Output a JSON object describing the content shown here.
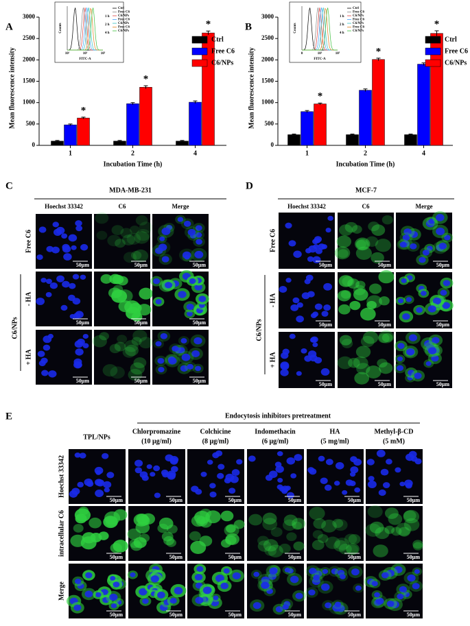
{
  "chart_data": [
    {
      "type": "bar",
      "panel": "A",
      "categories": [
        "1",
        "2",
        "4"
      ],
      "x_label": "Incubation Time (h)",
      "y_label": "Mean fluorescence intensity",
      "ylim": [
        0,
        3000
      ],
      "yticks": [
        0,
        500,
        1000,
        1500,
        2000,
        2500,
        3000
      ],
      "series": [
        {
          "name": "Ctrl",
          "color": "#000000",
          "values": [
            100,
            100,
            100
          ],
          "errors": [
            15,
            15,
            15
          ]
        },
        {
          "name": "Free C6",
          "color": "#0000ff",
          "values": [
            480,
            975,
            1010
          ],
          "errors": [
            20,
            25,
            30
          ]
        },
        {
          "name": "C6/NPs",
          "color": "#ff0000",
          "values": [
            640,
            1360,
            2630
          ],
          "errors": [
            20,
            35,
            45
          ],
          "annotations": [
            "*",
            "*",
            "*"
          ]
        }
      ],
      "inset": {
        "y_label": "Counts",
        "x_label": "FITC-A",
        "xtick_labels": [
          "10¹",
          "10³",
          "10⁵"
        ],
        "time_labels": [
          "1 h",
          "2 h",
          "4 h"
        ],
        "legend": [
          "Ctrl",
          "Free C6",
          "C6/NPs",
          "Free C6",
          "C6/NPs",
          "Free C6",
          "C6/NPs"
        ]
      }
    },
    {
      "type": "bar",
      "panel": "B",
      "categories": [
        "1",
        "2",
        "4"
      ],
      "x_label": "Incubation Time (h)",
      "y_label": "Mean fluorescence intensity",
      "ylim": [
        0,
        3000
      ],
      "yticks": [
        0,
        500,
        1000,
        1500,
        2000,
        2500,
        3000
      ],
      "series": [
        {
          "name": "Ctrl",
          "color": "#000000",
          "values": [
            250,
            250,
            250
          ],
          "errors": [
            15,
            15,
            15
          ]
        },
        {
          "name": "Free C6",
          "color": "#0000ff",
          "values": [
            790,
            1290,
            1900
          ],
          "errors": [
            25,
            30,
            30
          ]
        },
        {
          "name": "C6/NPs",
          "color": "#ff0000",
          "values": [
            970,
            2010,
            2620
          ],
          "errors": [
            20,
            30,
            60
          ],
          "annotations": [
            "*",
            "*",
            "*"
          ]
        }
      ],
      "inset": {
        "y_label": "Counts",
        "x_label": "FITC-A",
        "xtick_labels": [
          "0",
          "10³",
          "10⁵"
        ],
        "time_labels": [
          "1 h",
          "2 h",
          "4 h"
        ],
        "legend": [
          "Ctrl",
          "Free C6",
          "C6/NPs",
          "Free C6",
          "C6/NPs",
          "Free C6",
          "C6/NPs"
        ]
      }
    }
  ],
  "panels": {
    "C": {
      "letter": "C",
      "title": "MDA-MB-231",
      "columns": [
        "Hoechst 33342",
        "C6",
        "Merge"
      ],
      "rows": [
        "Free C6",
        "- HA",
        "+ HA"
      ],
      "group": "C6/NPs",
      "scale_bar": "50μm"
    },
    "D": {
      "letter": "D",
      "title": "MCF-7",
      "columns": [
        "Hoechst 33342",
        "C6",
        "Merge"
      ],
      "rows": [
        "Free C6",
        "- HA",
        "+ HA"
      ],
      "group": "C6/NPs",
      "scale_bar": "50μm"
    },
    "E": {
      "letter": "E",
      "header": "Endocytosis inhibitors pretreatment",
      "columns": [
        [
          "TPL/NPs"
        ],
        [
          "Chlorpromazine",
          "(10 μg/ml)"
        ],
        [
          "Colchicine",
          "(8 μg/ml)"
        ],
        [
          "Indomethacin",
          "(6 μg/ml)"
        ],
        [
          "HA",
          "(5 mg/ml)"
        ],
        [
          "Methyl-β-CD",
          "(5 mM)"
        ]
      ],
      "rows": [
        "Hoechst 33342",
        "intracellular C6",
        "Merge"
      ],
      "scale_bar": "50μm"
    }
  }
}
